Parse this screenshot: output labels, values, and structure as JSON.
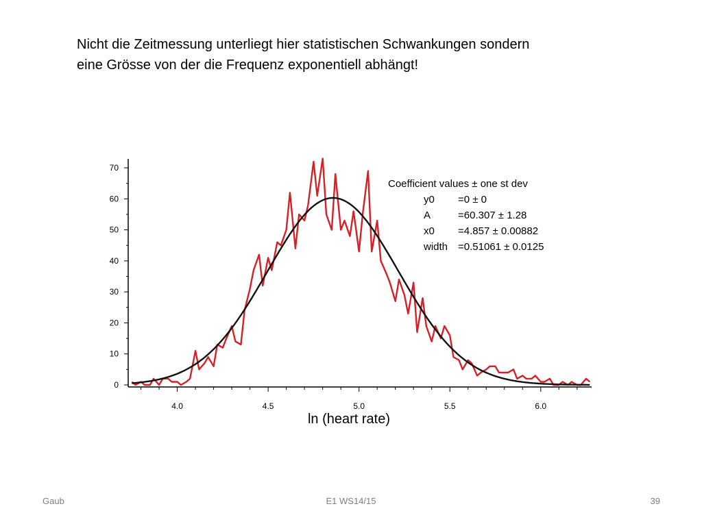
{
  "slide": {
    "text_lines": [
      "Nicht die Zeitmessung unterliegt hier statistischen Schwankungen sondern",
      "eine Grösse von der die Frequenz exponentiell abhängt!"
    ]
  },
  "footer": {
    "left": "Gaub",
    "center": "E1 WS14/15",
    "page": "39"
  },
  "chart_data": {
    "type": "line",
    "xlabel": "ln (heart rate)",
    "ylabel": "",
    "xlim": [
      3.73,
      6.28
    ],
    "ylim": [
      0,
      72
    ],
    "xticks": [
      4.0,
      4.5,
      5.0,
      5.5,
      6.0
    ],
    "xtick_labels": [
      "4.0",
      "4.5",
      "5.0",
      "5.5",
      "6.0"
    ],
    "yticks": [
      0,
      10,
      20,
      30,
      40,
      50,
      60,
      70
    ],
    "ytick_labels": [
      "0",
      "10",
      "20",
      "30",
      "40",
      "50",
      "60",
      "70"
    ],
    "grid": false,
    "series": [
      {
        "color": "#d42026",
        "x": [
          3.75,
          3.77,
          3.8,
          3.82,
          3.85,
          3.87,
          3.9,
          3.92,
          3.95,
          3.97,
          4.0,
          4.02,
          4.05,
          4.07,
          4.1,
          4.12,
          4.15,
          4.17,
          4.2,
          4.22,
          4.25,
          4.27,
          4.3,
          4.32,
          4.35,
          4.37,
          4.4,
          4.42,
          4.45,
          4.47,
          4.5,
          4.52,
          4.55,
          4.57,
          4.6,
          4.62,
          4.65,
          4.67,
          4.7,
          4.72,
          4.75,
          4.77,
          4.8,
          4.82,
          4.85,
          4.87,
          4.9,
          4.92,
          4.95,
          4.97,
          5.0,
          5.02,
          5.05,
          5.07,
          5.1,
          5.12,
          5.15,
          5.17,
          5.2,
          5.22,
          5.25,
          5.27,
          5.3,
          5.32,
          5.35,
          5.37,
          5.4,
          5.42,
          5.45,
          5.47,
          5.5,
          5.52,
          5.55,
          5.57,
          5.6,
          5.62,
          5.65,
          5.67,
          5.7,
          5.72,
          5.75,
          5.77,
          5.8,
          5.82,
          5.85,
          5.87,
          5.9,
          5.92,
          5.95,
          5.97,
          6.0,
          6.02,
          6.05,
          6.07,
          6.1,
          6.12,
          6.15,
          6.17,
          6.2,
          6.22,
          6.25,
          6.27
        ],
        "values": [
          1,
          0,
          1,
          0,
          0,
          2,
          0,
          2,
          2,
          1,
          1,
          0,
          1,
          2,
          11,
          5,
          7,
          9,
          6,
          13,
          12,
          15,
          19,
          14,
          13,
          24,
          31,
          37,
          42,
          32,
          41,
          37,
          46,
          45,
          50,
          62,
          44,
          55,
          53,
          58,
          72,
          61,
          73,
          55,
          50,
          68,
          50,
          53,
          48,
          56,
          43,
          55,
          69,
          43,
          53,
          40,
          36,
          33,
          27,
          34,
          29,
          23,
          33,
          17,
          28,
          19,
          14,
          19,
          15,
          19,
          16,
          9,
          8,
          5,
          8,
          7,
          3,
          4,
          5,
          6,
          6,
          4,
          4,
          4,
          5,
          2,
          3,
          2,
          2,
          3,
          1,
          1,
          2,
          0,
          0,
          1,
          0,
          1,
          0,
          0,
          2,
          1
        ]
      },
      {
        "color": "#111111",
        "function": "gauss",
        "y0": 0,
        "A": 60.307,
        "x0": 4.857,
        "width": 0.51061
      }
    ],
    "annotation": {
      "lines": [
        {
          "label": "Coefficient values ± one st dev",
          "value": ""
        },
        {
          "label": "y0",
          "value": "=0 ± 0"
        },
        {
          "label": "A",
          "value": "=60.307 ± 1.28"
        },
        {
          "label": "x0",
          "value": "=4.857 ± 0.00882"
        },
        {
          "label": "width",
          "value": "=0.51061 ± 0.0125"
        }
      ]
    }
  }
}
